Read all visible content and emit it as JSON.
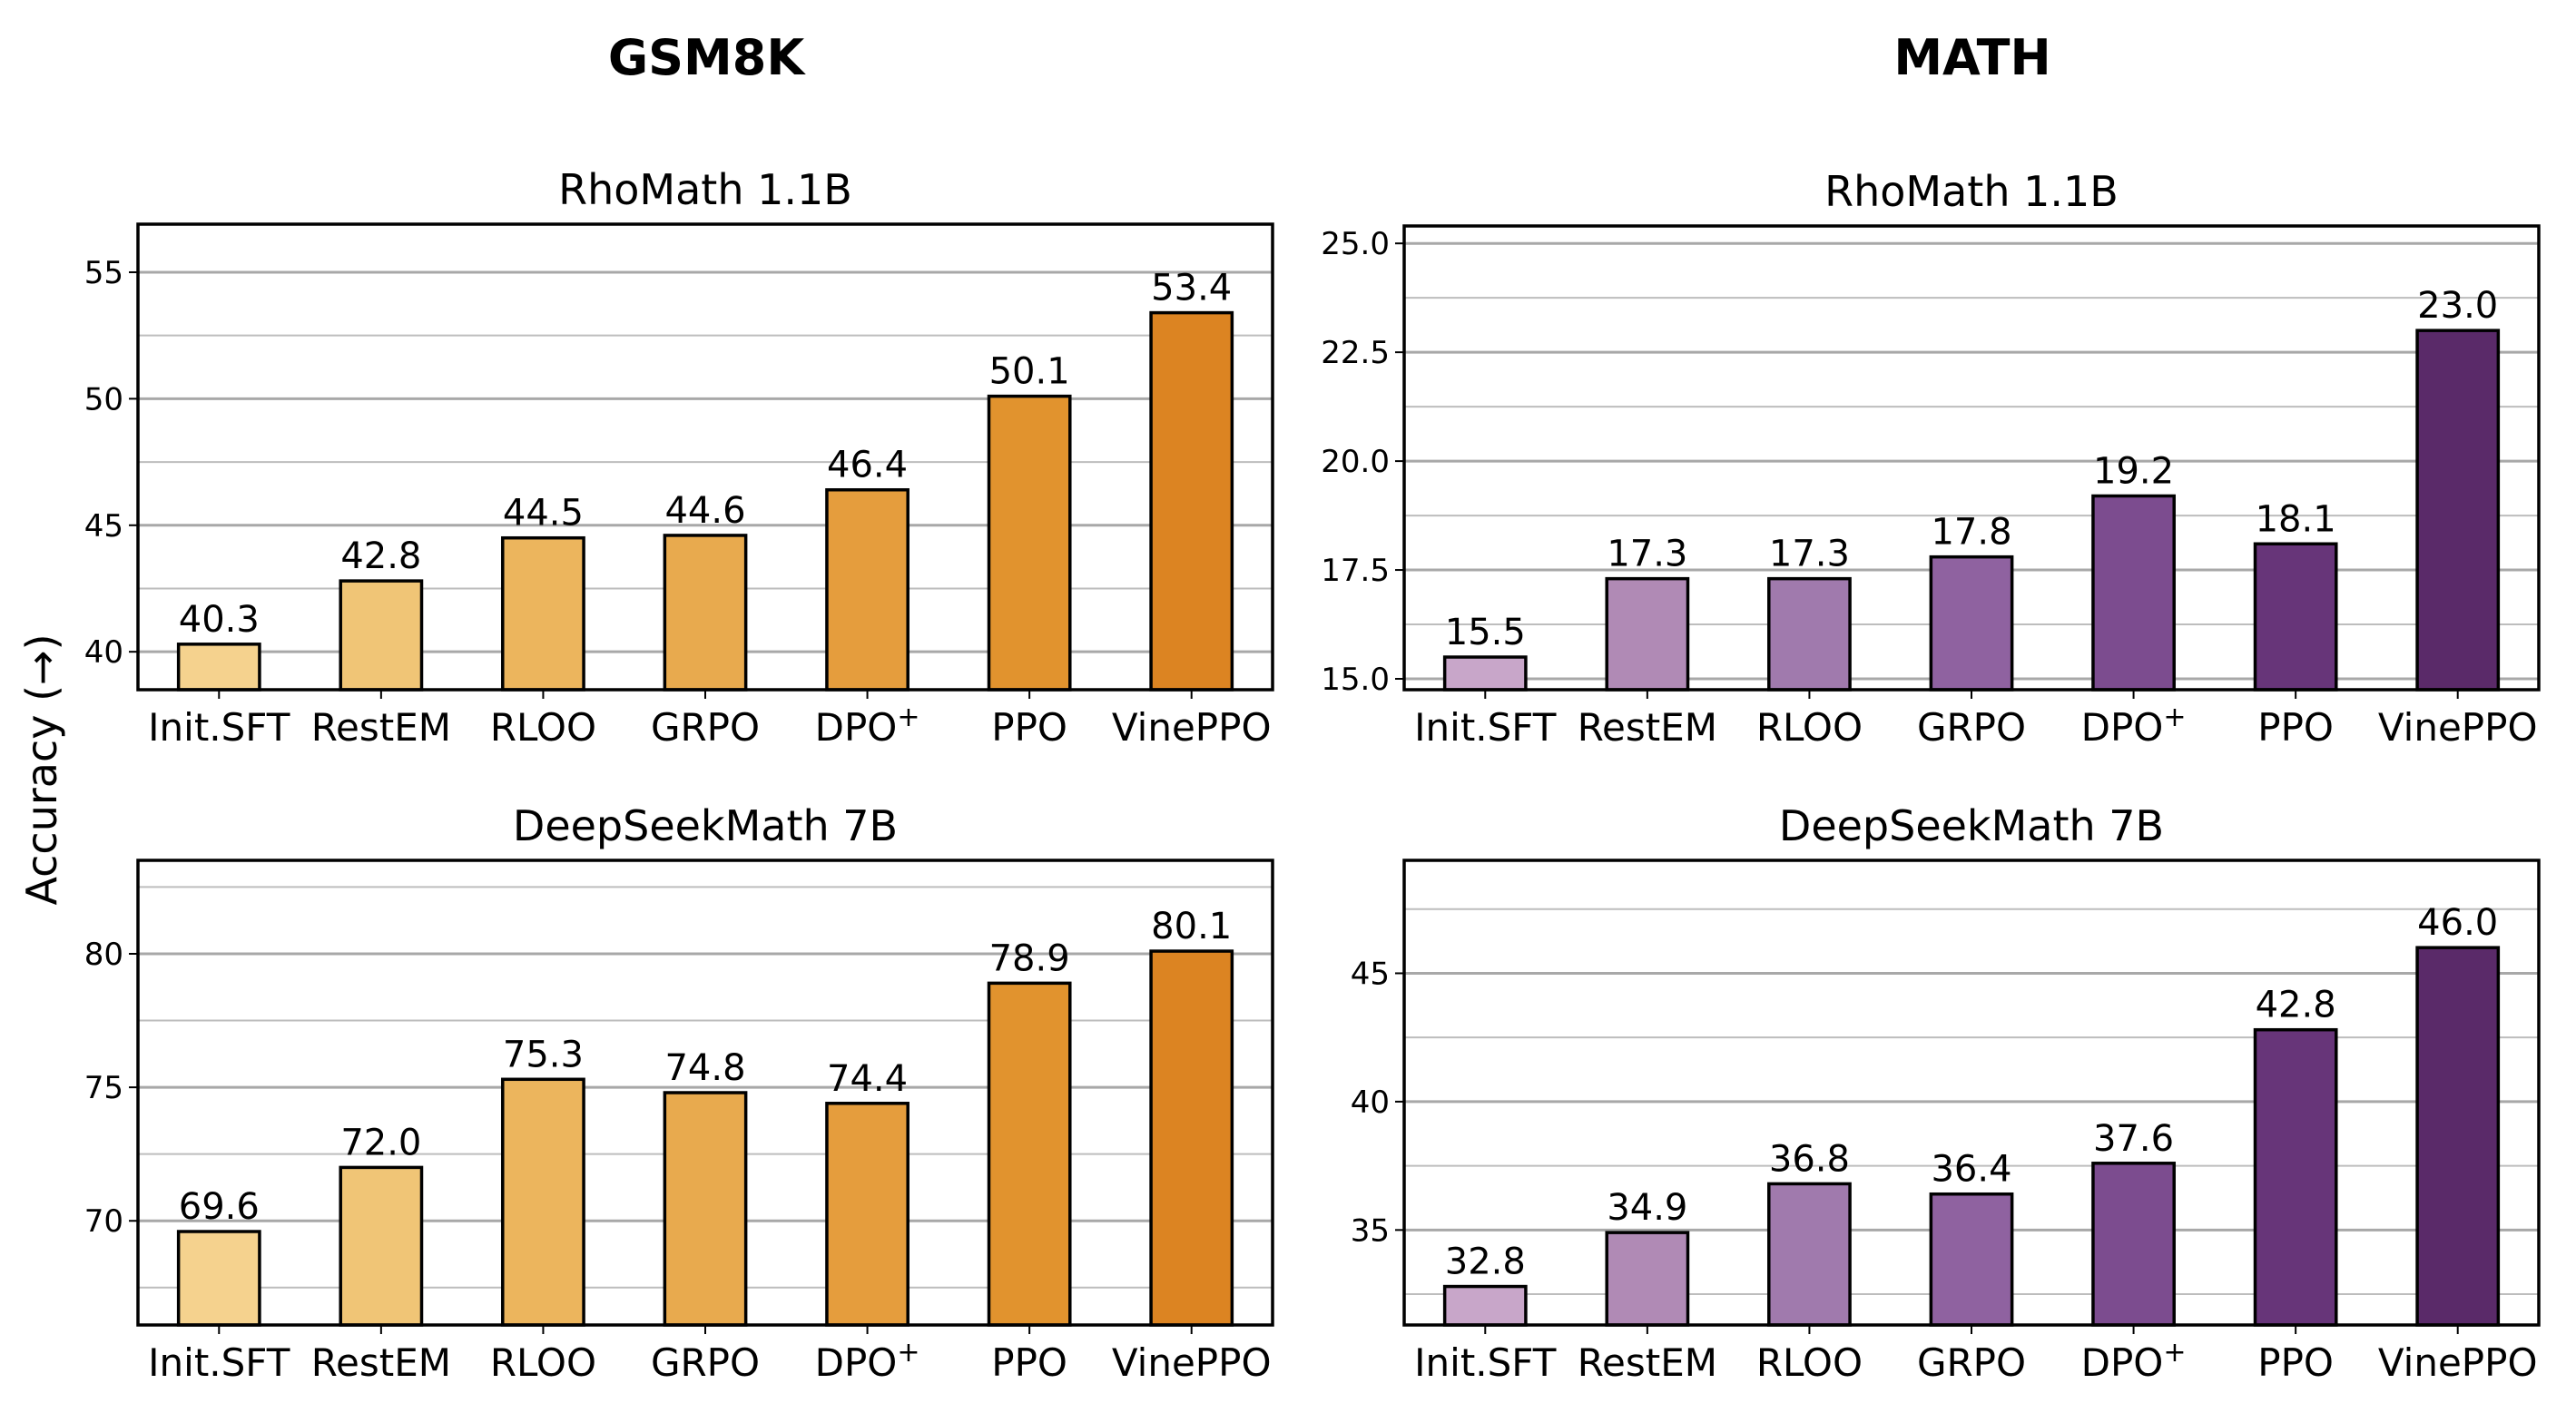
{
  "figure": {
    "column_titles": [
      "GSM8K",
      "MATH"
    ],
    "ylabel": "Accuracy (→)",
    "colors": {
      "gsm8k": [
        "#f5d28e",
        "#f0c576",
        "#ecb55d",
        "#e8aa4e",
        "#e59d3d",
        "#e1932e",
        "#dc8422"
      ],
      "math": [
        "#c8a6c9",
        "#b08ab5",
        "#a07aad",
        "#8f62a0",
        "#7c4c8f",
        "#673579",
        "#5a2a69"
      ]
    }
  },
  "chart_data": [
    {
      "type": "bar",
      "column": "GSM8K",
      "title": "RhoMath 1.1B",
      "categories": [
        "Init.SFT",
        "RestEM",
        "RLOO",
        "GRPO",
        "DPO",
        "PPO",
        "VinePPO"
      ],
      "values": [
        40.3,
        42.8,
        44.5,
        44.6,
        46.4,
        50.1,
        53.4
      ],
      "value_labels": [
        "40.3",
        "42.8",
        "44.5",
        "44.6",
        "46.4",
        "50.1",
        "53.4"
      ],
      "ylim": [
        38.5,
        56.9
      ],
      "yticks": [
        "40",
        "45",
        "50",
        "55"
      ],
      "grid": true
    },
    {
      "type": "bar",
      "column": "MATH",
      "title": "RhoMath 1.1B",
      "categories": [
        "Init.SFT",
        "RestEM",
        "RLOO",
        "GRPO",
        "DPO",
        "PPO",
        "VinePPO"
      ],
      "values": [
        15.5,
        17.3,
        17.3,
        17.8,
        19.2,
        18.1,
        23.0
      ],
      "value_labels": [
        "15.5",
        "17.3",
        "17.3",
        "17.8",
        "19.2",
        "18.1",
        "23.0"
      ],
      "ylim": [
        14.75,
        25.4
      ],
      "yticks": [
        "15.0",
        "17.5",
        "20.0",
        "22.5",
        "25.0"
      ],
      "grid": true
    },
    {
      "type": "bar",
      "column": "GSM8K",
      "title": "DeepSeekMath 7B",
      "categories": [
        "Init.SFT",
        "RestEM",
        "RLOO",
        "GRPO",
        "DPO",
        "PPO",
        "VinePPO"
      ],
      "values": [
        69.6,
        72.0,
        75.3,
        74.8,
        74.4,
        78.9,
        80.1
      ],
      "value_labels": [
        "69.6",
        "72.0",
        "75.3",
        "74.8",
        "74.4",
        "78.9",
        "80.1"
      ],
      "ylim": [
        66.1,
        83.5
      ],
      "yticks": [
        "70",
        "75",
        "80"
      ],
      "grid": true
    },
    {
      "type": "bar",
      "column": "MATH",
      "title": "DeepSeekMath 7B",
      "categories": [
        "Init.SFT",
        "RestEM",
        "RLOO",
        "GRPO",
        "DPO",
        "PPO",
        "VinePPO"
      ],
      "values": [
        32.8,
        34.9,
        36.8,
        36.4,
        37.6,
        42.8,
        46.0
      ],
      "value_labels": [
        "32.8",
        "34.9",
        "36.8",
        "36.4",
        "37.6",
        "42.8",
        "46.0"
      ],
      "ylim": [
        31.3,
        49.4
      ],
      "yticks": [
        "35",
        "40",
        "45"
      ],
      "grid": true
    }
  ]
}
